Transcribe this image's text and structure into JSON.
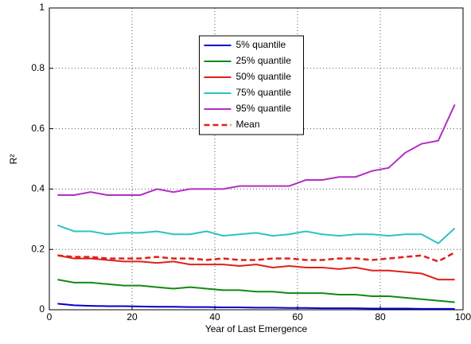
{
  "chart_data": {
    "type": "line",
    "x_label": "Year of Last Emergence",
    "y_label": "R²",
    "x": [
      2,
      6,
      10,
      14,
      18,
      22,
      26,
      30,
      34,
      38,
      42,
      46,
      50,
      54,
      58,
      62,
      66,
      70,
      74,
      78,
      82,
      86,
      90,
      94,
      98
    ],
    "series": [
      {
        "name": "5% quantile",
        "color": "#0000cc",
        "style": "solid",
        "values": [
          0.02,
          0.015,
          0.013,
          0.012,
          0.012,
          0.011,
          0.01,
          0.01,
          0.009,
          0.009,
          0.008,
          0.008,
          0.007,
          0.007,
          0.006,
          0.006,
          0.005,
          0.005,
          0.005,
          0.004,
          0.004,
          0.004,
          0.003,
          0.003,
          0.003
        ]
      },
      {
        "name": "25% quantile",
        "color": "#138a13",
        "style": "solid",
        "values": [
          0.1,
          0.09,
          0.09,
          0.085,
          0.08,
          0.08,
          0.075,
          0.07,
          0.075,
          0.07,
          0.065,
          0.065,
          0.06,
          0.06,
          0.055,
          0.055,
          0.055,
          0.05,
          0.05,
          0.045,
          0.045,
          0.04,
          0.035,
          0.03,
          0.025
        ]
      },
      {
        "name": "50% quantile",
        "color": "#e0201c",
        "style": "solid",
        "values": [
          0.18,
          0.17,
          0.17,
          0.165,
          0.16,
          0.16,
          0.155,
          0.16,
          0.15,
          0.15,
          0.15,
          0.145,
          0.15,
          0.14,
          0.145,
          0.14,
          0.14,
          0.135,
          0.14,
          0.13,
          0.13,
          0.125,
          0.12,
          0.1,
          0.1
        ]
      },
      {
        "name": "75% quantile",
        "color": "#2cc4c0",
        "style": "solid",
        "values": [
          0.28,
          0.26,
          0.26,
          0.25,
          0.255,
          0.255,
          0.26,
          0.25,
          0.25,
          0.26,
          0.245,
          0.25,
          0.255,
          0.245,
          0.25,
          0.26,
          0.25,
          0.245,
          0.25,
          0.25,
          0.245,
          0.25,
          0.25,
          0.22,
          0.27
        ]
      },
      {
        "name": "95% quantile",
        "color": "#b22fc4",
        "style": "solid",
        "values": [
          0.38,
          0.38,
          0.39,
          0.38,
          0.38,
          0.38,
          0.4,
          0.39,
          0.4,
          0.4,
          0.4,
          0.41,
          0.41,
          0.41,
          0.41,
          0.43,
          0.43,
          0.44,
          0.44,
          0.46,
          0.47,
          0.52,
          0.55,
          0.56,
          0.68
        ]
      },
      {
        "name": "Mean",
        "color": "#e0201c",
        "style": "dash",
        "values": [
          0.18,
          0.175,
          0.175,
          0.17,
          0.17,
          0.17,
          0.175,
          0.17,
          0.17,
          0.165,
          0.17,
          0.165,
          0.165,
          0.17,
          0.17,
          0.165,
          0.165,
          0.17,
          0.17,
          0.165,
          0.17,
          0.175,
          0.18,
          0.16,
          0.19
        ]
      }
    ],
    "xlim": [
      0,
      100
    ],
    "xticks": [
      0,
      20,
      40,
      60,
      80,
      100
    ],
    "ylim": [
      0,
      1
    ],
    "yticks": [
      0,
      0.2,
      0.4,
      0.6,
      0.8,
      1
    ],
    "grid": true,
    "legend_position": "upper center"
  }
}
